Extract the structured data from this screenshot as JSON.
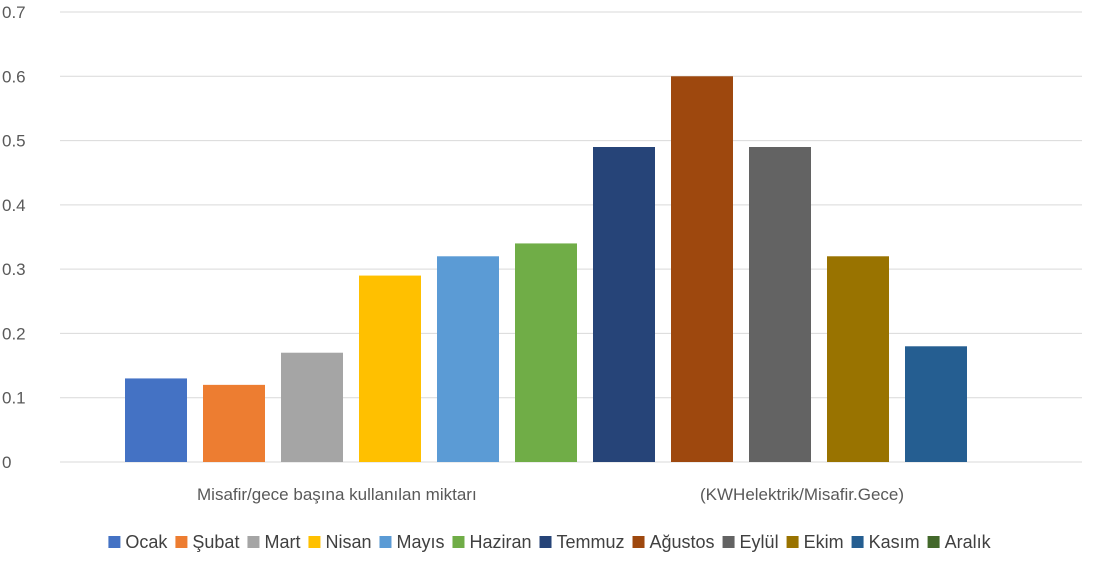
{
  "chart_data": {
    "type": "bar",
    "categories": [
      "Ocak",
      "Şubat",
      "Mart",
      "Nisan",
      "Mayıs",
      "Haziran",
      "Temmuz",
      "Ağustos",
      "Eylül",
      "Ekim",
      "Kasım",
      "Aralık"
    ],
    "values": [
      0.13,
      0.12,
      0.17,
      0.29,
      0.32,
      0.34,
      0.49,
      0.6,
      0.49,
      0.32,
      0.18,
      0
    ],
    "colors": [
      "#4472C4",
      "#ED7D31",
      "#A5A5A5",
      "#FFC000",
      "#5B9BD5",
      "#70AD47",
      "#264478",
      "#9E480E",
      "#636363",
      "#997300",
      "#255E91",
      "#43682B"
    ],
    "xlabel_left": "Misafir/gece başına kullanılan  miktarı",
    "xlabel_right": "(KWHelektrik/Misafir.Gece)",
    "ylim": [
      0,
      0.7
    ],
    "yticks": [
      "0",
      "0.1",
      "0.2",
      "0.3",
      "0.4",
      "0.5",
      "0.6",
      "0.7"
    ],
    "grid": true,
    "legend_position": "bottom"
  }
}
